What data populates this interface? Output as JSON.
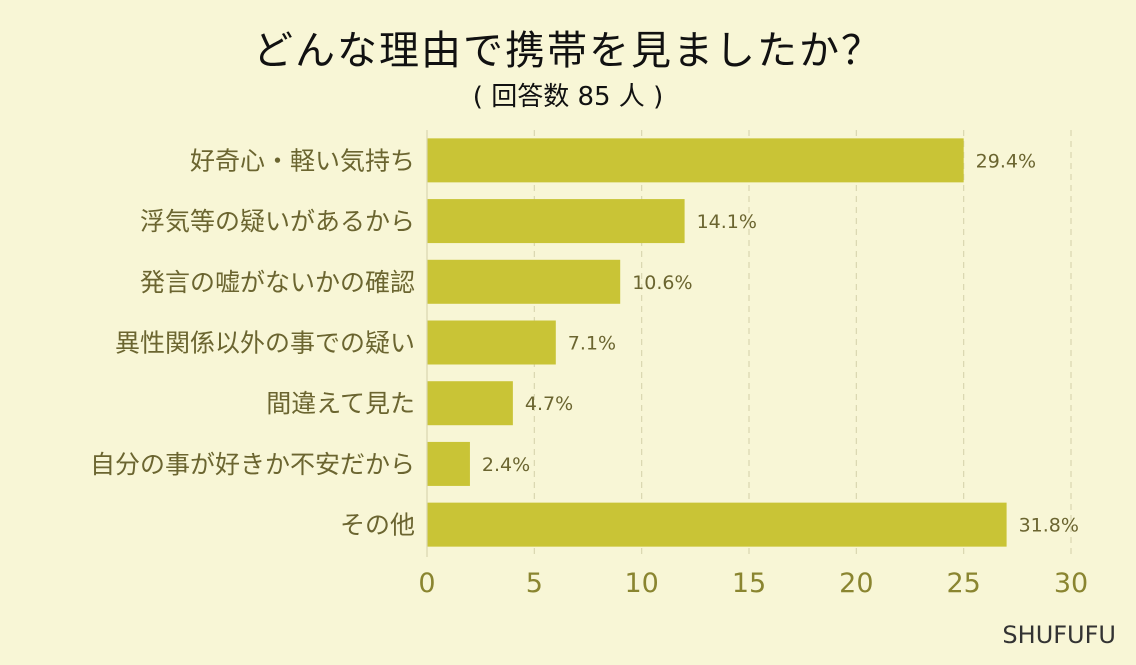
{
  "chart_data": {
    "type": "bar",
    "orientation": "horizontal",
    "title": "どんな理由で携帯を見ましたか？",
    "subtitle": "( 回答数  85 人 )",
    "categories": [
      "好奇心・軽い気持ち",
      "浮気等の疑いがあるから",
      "発言の嘘がないかの確認",
      "異性関係以外の事での疑い",
      "間違えて見た",
      "自分の事が好きか不安だから",
      "その他"
    ],
    "values": [
      25,
      12,
      9,
      6,
      4,
      2,
      27
    ],
    "data_labels": [
      "29.4%",
      "14.1%",
      "10.6%",
      "7.1%",
      "4.7%",
      "2.4%",
      "31.8%"
    ],
    "xlim": [
      0,
      30
    ],
    "xticks": [
      "0",
      "5",
      "10",
      "15",
      "20",
      "25",
      "30"
    ],
    "grid": "vertical dashed",
    "colors": {
      "bar": "#c9c436",
      "background": "#f8f6d6"
    }
  },
  "watermark": "SHUFUFU"
}
